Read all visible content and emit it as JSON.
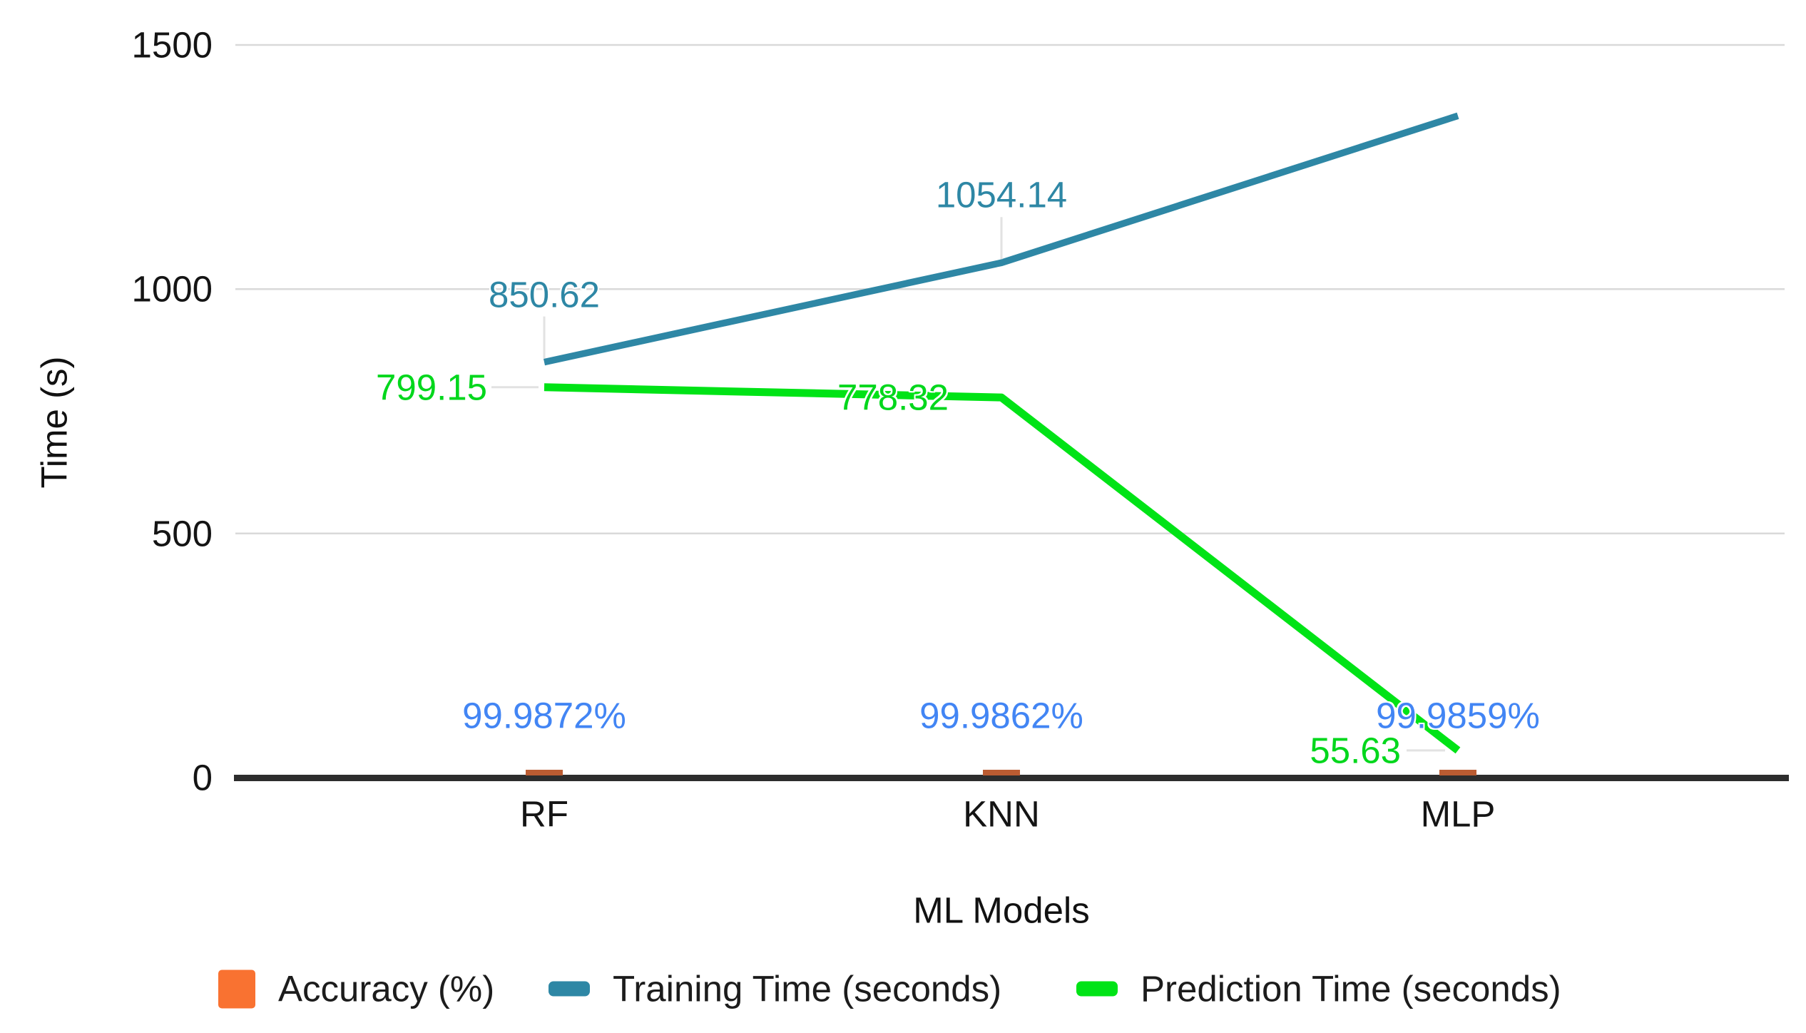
{
  "chart_data": {
    "type": "combo",
    "title": "",
    "categories": [
      "RF",
      "KNN",
      "MLP"
    ],
    "xlabel": "ML Models",
    "ylabel": "Time (s)",
    "ylim": [
      0,
      1500
    ],
    "yticks": [
      {
        "value": 0,
        "label": "0"
      },
      {
        "value": 500,
        "label": "500"
      },
      {
        "value": 1000,
        "label": "1000"
      },
      {
        "value": 1500,
        "label": "1500"
      }
    ],
    "grid": true,
    "legend_position": "bottom",
    "series": [
      {
        "name": "Accuracy (%)",
        "type": "bar",
        "bar_color": "#bb5c32",
        "legend_color": "#f97231",
        "values": [
          99.9872,
          99.9862,
          99.9859
        ],
        "point_labels": [
          "99.9872%",
          "99.9862%",
          "99.9859%"
        ],
        "point_label_color": "#4285f4"
      },
      {
        "name": "Training Time (seconds)",
        "type": "line",
        "color": "#2e87a5",
        "values": [
          850.62,
          1054.14,
          1355
        ],
        "point_labels": [
          "850.62",
          "1054.14",
          ""
        ],
        "point_label_color": "#2e87a5"
      },
      {
        "name": "Prediction Time (seconds)",
        "type": "line",
        "color": "#00e316",
        "values": [
          799.15,
          778.32,
          55.63
        ],
        "point_labels": [
          "799.15",
          "778.32",
          "55.63"
        ],
        "point_label_color": "#00d71c"
      }
    ],
    "colors": {
      "grid": "#d9d9d9",
      "axis_line": "#2d2d2d",
      "callout": "#e2e2e2",
      "tick_text": "#141414",
      "background": "#ffffff"
    }
  }
}
